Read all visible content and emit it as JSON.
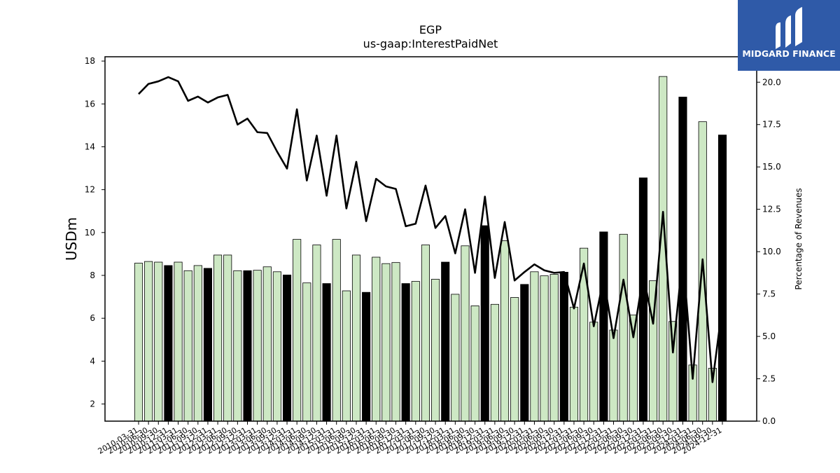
{
  "logo": {
    "text": "MIDGARD FINANCE",
    "color": "#2f5aa8"
  },
  "chart_data": {
    "type": "bar",
    "title": "EGP",
    "subtitle": "us-gaap:InterestPaidNet",
    "ylabel": "USDm",
    "y2label": "Percentage of Revenues",
    "ylim": [
      1.2,
      18.2
    ],
    "y2lim": [
      0,
      21.5
    ],
    "yticks": [
      2,
      4,
      6,
      8,
      10,
      12,
      14,
      16,
      18
    ],
    "y2ticks": [
      0.0,
      2.5,
      5.0,
      7.5,
      10.0,
      12.5,
      15.0,
      17.5,
      20.0
    ],
    "colors": {
      "quarter_bar": "#cde8c4",
      "year_end_bar": "#000000",
      "line": "#000000"
    },
    "categories": [
      "2010-03-31",
      "2010-06-30",
      "2010-09-30",
      "2010-12-31",
      "2011-03-31",
      "2011-06-30",
      "2011-09-30",
      "2011-12-31",
      "2012-03-31",
      "2012-06-30",
      "2012-09-30",
      "2012-12-31",
      "2013-03-31",
      "2013-06-30",
      "2013-09-30",
      "2013-12-31",
      "2014-03-31",
      "2014-06-30",
      "2014-09-30",
      "2014-12-31",
      "2015-03-31",
      "2015-06-30",
      "2015-09-30",
      "2015-12-31",
      "2016-03-31",
      "2016-06-30",
      "2016-09-30",
      "2016-12-31",
      "2017-03-31",
      "2017-06-30",
      "2017-09-30",
      "2017-12-31",
      "2018-03-31",
      "2018-06-30",
      "2018-09-30",
      "2018-12-31",
      "2019-03-31",
      "2019-06-30",
      "2019-09-30",
      "2019-12-31",
      "2020-03-31",
      "2020-06-30",
      "2020-09-30",
      "2020-12-31",
      "2021-03-31",
      "2021-06-30",
      "2021-09-30",
      "2021-12-31",
      "2022-03-31",
      "2022-06-30",
      "2022-09-30",
      "2022-12-31",
      "2023-03-31",
      "2023-06-30",
      "2023-09-30",
      "2023-12-31",
      "2024-03-31",
      "2024-06-30",
      "2024-09-30",
      "2024-12-31"
    ],
    "series": [
      {
        "kind": "bar",
        "axis": "left",
        "values": [
          8.57,
          8.65,
          8.62,
          8.46,
          8.62,
          8.22,
          8.46,
          8.33,
          8.95,
          8.95,
          8.22,
          8.22,
          8.24,
          8.4,
          8.17,
          8.02,
          9.68,
          7.65,
          9.42,
          7.62,
          9.68,
          7.28,
          8.95,
          7.21,
          8.85,
          8.55,
          8.6,
          7.62,
          7.72,
          9.42,
          7.82,
          8.62,
          7.12,
          9.38,
          6.58,
          10.32,
          6.65,
          9.62,
          6.97,
          7.58,
          8.17,
          7.98,
          8.05,
          8.15,
          6.52,
          9.27,
          5.82,
          10.03,
          5.45,
          9.92,
          6.15,
          12.55,
          7.75,
          17.28,
          5.85,
          16.32,
          3.82,
          15.17,
          3.67,
          14.55
        ]
      },
      {
        "kind": "line",
        "axis": "right",
        "values": [
          19.3,
          19.9,
          20.05,
          20.3,
          20.05,
          18.9,
          19.15,
          18.8,
          19.1,
          19.25,
          17.5,
          17.85,
          17.05,
          17.0,
          15.9,
          14.9,
          18.4,
          14.2,
          16.85,
          13.3,
          16.85,
          12.55,
          15.3,
          11.8,
          14.3,
          13.85,
          13.7,
          11.5,
          11.65,
          13.9,
          11.4,
          12.1,
          9.9,
          12.5,
          8.75,
          13.25,
          8.45,
          11.75,
          8.3,
          8.8,
          9.25,
          8.9,
          8.75,
          8.8,
          6.65,
          9.3,
          5.6,
          8.4,
          4.9,
          8.35,
          4.95,
          8.6,
          5.75,
          12.35,
          4.05,
          9.75,
          2.5,
          9.55,
          2.3,
          6.8
        ]
      }
    ]
  }
}
